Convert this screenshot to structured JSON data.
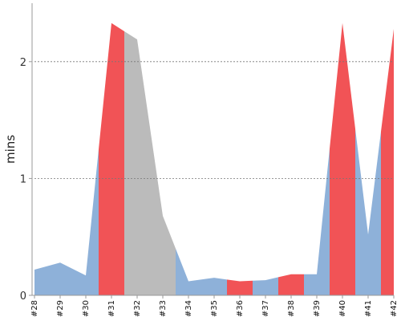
{
  "chart_data": {
    "type": "area",
    "ylabel": "mins",
    "xlabel": "",
    "title": "",
    "ylim": [
      0,
      2.5
    ],
    "y_ticks": [
      0,
      1,
      2
    ],
    "grid": "horizontal",
    "legend": "none",
    "categories": [
      "#28",
      "#29",
      "#30",
      "#31",
      "#32",
      "#33",
      "#34",
      "#35",
      "#36",
      "#37",
      "#38",
      "#39",
      "#40",
      "#41",
      "#42"
    ],
    "values": [
      0.22,
      0.28,
      0.17,
      2.33,
      2.19,
      0.68,
      0.12,
      0.15,
      0.12,
      0.13,
      0.18,
      0.18,
      2.33,
      0.52,
      2.28
    ],
    "segments": [
      {
        "from": 0,
        "to": 2.5,
        "status": "pass"
      },
      {
        "from": 2.5,
        "to": 3.5,
        "status": "fail"
      },
      {
        "from": 3.5,
        "to": 5.5,
        "status": "neutral"
      },
      {
        "from": 5.5,
        "to": 7.5,
        "status": "pass"
      },
      {
        "from": 7.5,
        "to": 8.5,
        "status": "fail"
      },
      {
        "from": 8.5,
        "to": 9.5,
        "status": "pass"
      },
      {
        "from": 9.5,
        "to": 10.5,
        "status": "fail"
      },
      {
        "from": 10.5,
        "to": 11.5,
        "status": "pass"
      },
      {
        "from": 11.5,
        "to": 12.5,
        "status": "fail"
      },
      {
        "from": 12.5,
        "to": 13.5,
        "status": "pass"
      },
      {
        "from": 13.5,
        "to": 14,
        "status": "fail"
      }
    ],
    "colors": {
      "pass": "#8eb1d9",
      "fail": "#f15356",
      "neutral": "#bbbbbb"
    }
  }
}
